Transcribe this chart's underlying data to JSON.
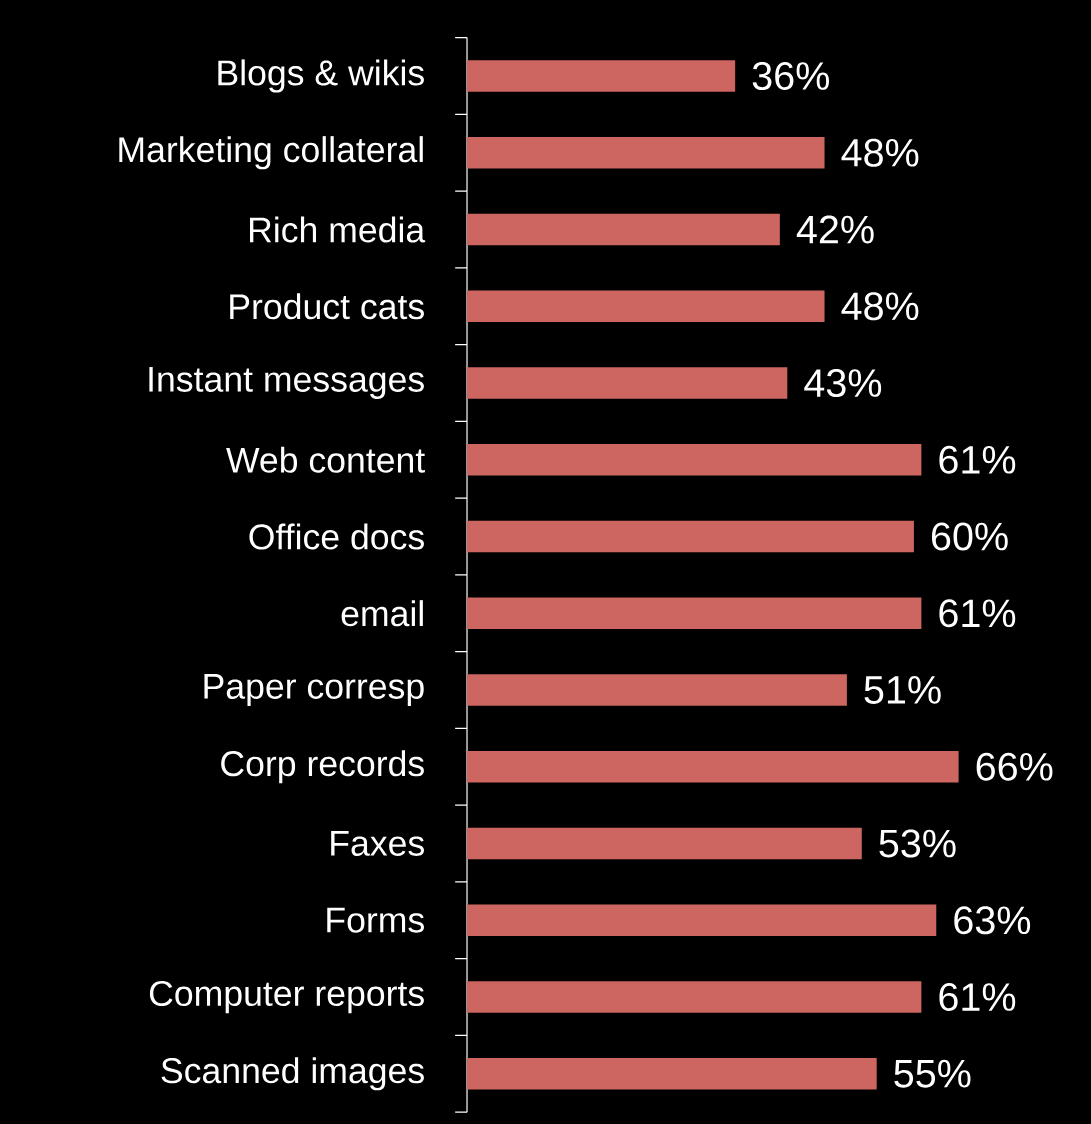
{
  "chart_data": {
    "type": "bar",
    "orientation": "horizontal",
    "categories": [
      "Blogs & wikis",
      "Marketing collateral",
      "Rich media",
      "Product cats",
      "Instant messages",
      "Web content",
      "Office docs",
      "email",
      "Paper corresp",
      "Corp records",
      "Faxes",
      "Forms",
      "Computer reports",
      "Scanned images"
    ],
    "values": [
      36,
      48,
      42,
      48,
      43,
      61,
      60,
      61,
      51,
      66,
      53,
      63,
      61,
      55
    ],
    "value_labels": [
      "36%",
      "48%",
      "42%",
      "48%",
      "43%",
      "61%",
      "60%",
      "61%",
      "51%",
      "66%",
      "53%",
      "63%",
      "61%",
      "55%"
    ],
    "color": "#cd6660"
  }
}
